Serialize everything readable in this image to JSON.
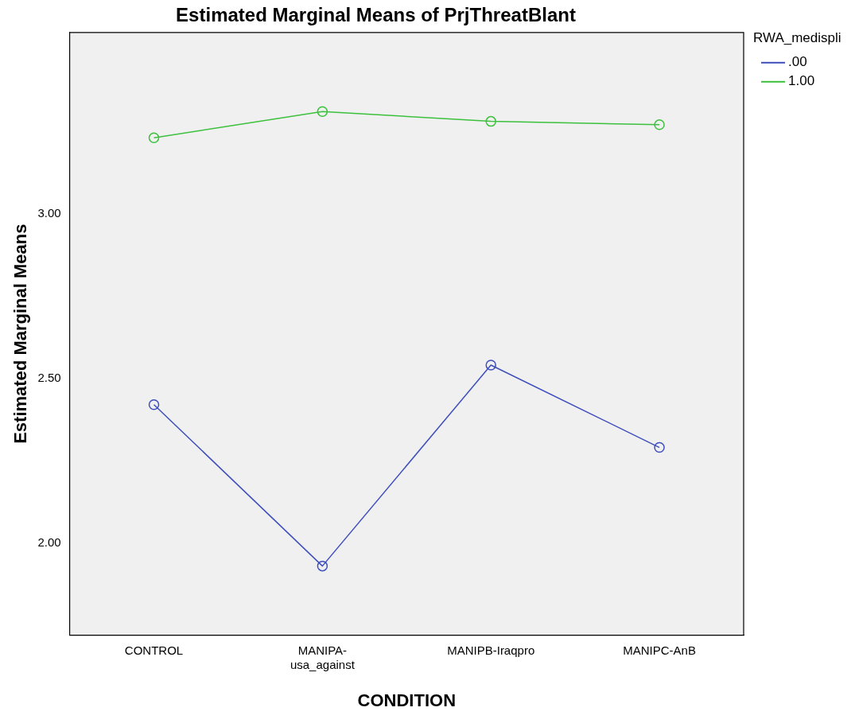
{
  "chart_data": {
    "type": "line",
    "title": "Estimated Marginal Means of PrjThreatBlant",
    "xlabel": "CONDITION",
    "ylabel": "Estimated Marginal Means",
    "legend_title": "RWA_medispli",
    "categories": [
      "CONTROL",
      "MANIPA-usa_against",
      "MANIPB-Iraqpro",
      "MANIPC-AnB"
    ],
    "series": [
      {
        "name": ".00",
        "color": "#3e4ebc",
        "values": [
          2.42,
          1.93,
          2.54,
          2.29
        ]
      },
      {
        "name": "1.00",
        "color": "#3cc13c",
        "values": [
          3.23,
          3.31,
          3.28,
          3.27
        ]
      }
    ],
    "ylim": [
      1.72,
      3.55
    ],
    "yticks": [
      {
        "value": 2,
        "label": "2.00"
      },
      {
        "value": 2.5,
        "label": "2.50"
      },
      {
        "value": 3,
        "label": "3.00"
      }
    ],
    "grid": false,
    "legend": "top right",
    "marker": "circle",
    "line_style": "solid"
  }
}
